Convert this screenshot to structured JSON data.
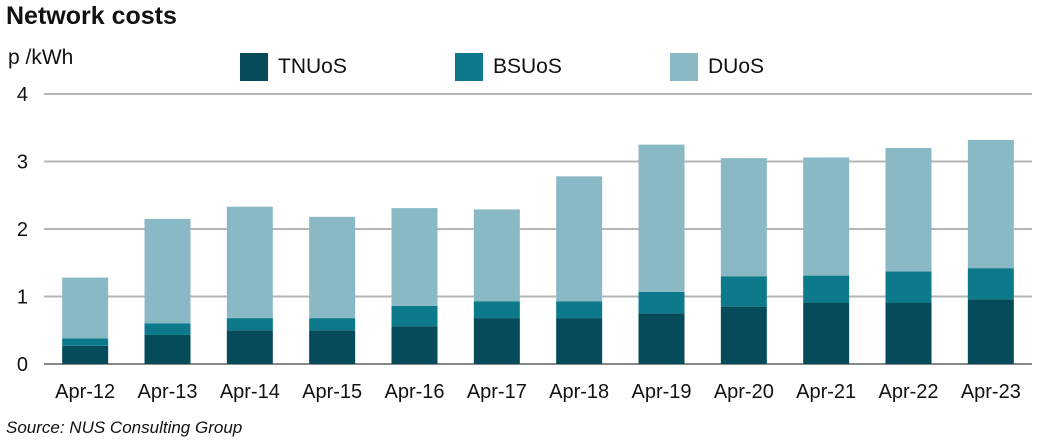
{
  "title": "Network costs",
  "source": "Source: NUS Consulting Group",
  "colors": {
    "TNUoS": "#054b5a",
    "BSUoS": "#0d7a8c",
    "DUoS": "#8ab9c6",
    "grid": "#b5b5b5"
  },
  "chart_data": {
    "type": "bar",
    "stacked": true,
    "title": "Network costs",
    "ylabel": "p /kWh",
    "xlabel": "",
    "ylim": [
      0,
      4
    ],
    "yticks": [
      0,
      1,
      2,
      3,
      4
    ],
    "grid": true,
    "legend_position": "top",
    "categories": [
      "Apr-12",
      "Apr-13",
      "Apr-14",
      "Apr-15",
      "Apr-16",
      "Apr-17",
      "Apr-18",
      "Apr-19",
      "Apr-20",
      "Apr-21",
      "Apr-22",
      "Apr-23"
    ],
    "series": [
      {
        "name": "TNUoS",
        "values": [
          0.27,
          0.43,
          0.5,
          0.5,
          0.56,
          0.68,
          0.68,
          0.75,
          0.85,
          0.91,
          0.91,
          0.96
        ]
      },
      {
        "name": "BSUoS",
        "values": [
          0.11,
          0.17,
          0.18,
          0.18,
          0.3,
          0.25,
          0.25,
          0.32,
          0.45,
          0.4,
          0.46,
          0.46
        ]
      },
      {
        "name": "DUoS",
        "values": [
          0.9,
          1.55,
          1.65,
          1.5,
          1.45,
          1.36,
          1.85,
          2.18,
          1.75,
          1.75,
          1.83,
          1.9
        ]
      }
    ]
  }
}
